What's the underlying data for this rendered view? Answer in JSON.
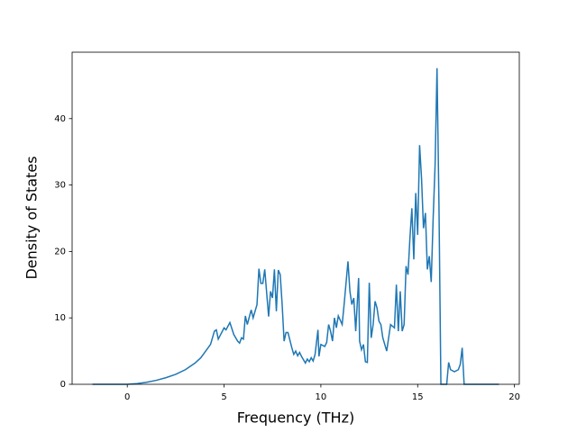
{
  "chart_data": {
    "type": "line",
    "xlabel": "Frequency (THz)",
    "ylabel": "Density of States",
    "xlim": [
      -2.85,
      20.25
    ],
    "ylim": [
      0,
      50
    ],
    "xticks": [
      0,
      5,
      10,
      15,
      20
    ],
    "yticks": [
      0,
      10,
      20,
      30,
      40
    ],
    "x": [
      -1.8,
      -1,
      0,
      0.5,
      1,
      1.5,
      2,
      2.5,
      3,
      3.5,
      3.8,
      4.0,
      4.3,
      4.5,
      4.6,
      4.7,
      5.0,
      5.1,
      5.3,
      5.5,
      5.7,
      5.8,
      5.9,
      6.0,
      6.1,
      6.2,
      6.4,
      6.5,
      6.7,
      6.8,
      6.9,
      7.0,
      7.1,
      7.3,
      7.4,
      7.5,
      7.6,
      7.7,
      7.8,
      7.9,
      8.0,
      8.1,
      8.2,
      8.3,
      8.5,
      8.6,
      8.7,
      8.8,
      8.9,
      9.0,
      9.2,
      9.3,
      9.4,
      9.5,
      9.6,
      9.7,
      9.85,
      9.9,
      10.0,
      10.2,
      10.3,
      10.4,
      10.5,
      10.6,
      10.7,
      10.8,
      10.9,
      11.1,
      11.2,
      11.4,
      11.5,
      11.6,
      11.7,
      11.8,
      11.95,
      12.0,
      12.1,
      12.2,
      12.3,
      12.4,
      12.5,
      12.6,
      12.7,
      12.8,
      12.9,
      13.0,
      13.1,
      13.2,
      13.4,
      13.6,
      13.8,
      13.9,
      14.0,
      14.1,
      14.2,
      14.3,
      14.4,
      14.5,
      14.6,
      14.7,
      14.8,
      14.9,
      15.0,
      15.1,
      15.2,
      15.3,
      15.4,
      15.5,
      15.6,
      15.7,
      15.8,
      15.9,
      16.0,
      16.1,
      16.2,
      16.5,
      16.6,
      16.7,
      16.9,
      17.1,
      17.2,
      17.3,
      17.4,
      19.2
    ],
    "series": [
      {
        "color": "#1f77b4",
        "values": [
          0,
          0,
          0,
          0.1,
          0.3,
          0.6,
          1.0,
          1.5,
          2.2,
          3.2,
          4.0,
          4.8,
          6.0,
          8.0,
          8.2,
          6.8,
          8.5,
          8.2,
          9.3,
          7.5,
          6.5,
          6.2,
          7.0,
          6.8,
          10.3,
          9.0,
          11.2,
          10.0,
          12.0,
          17.4,
          15.2,
          15.2,
          17.3,
          10.2,
          14.0,
          13.0,
          17.3,
          11.0,
          17.2,
          16.5,
          12.0,
          6.5,
          7.8,
          7.8,
          5.5,
          4.5,
          5.0,
          4.3,
          4.8,
          4.2,
          3.2,
          3.8,
          3.4,
          4.0,
          3.5,
          4.5,
          8.2,
          4.2,
          6.0,
          5.7,
          6.3,
          9.0,
          8.0,
          6.5,
          10.0,
          8.5,
          10.3,
          9.0,
          12.0,
          18.5,
          14.0,
          12.0,
          13.0,
          8.0,
          16.0,
          6.5,
          5.2,
          6.0,
          3.4,
          3.3,
          15.3,
          7.0,
          9.0,
          12.5,
          11.5,
          9.5,
          9.0,
          7.0,
          5.0,
          9.0,
          8.5,
          15.0,
          8.0,
          14.0,
          8.0,
          9.0,
          17.8,
          16.5,
          22.0,
          26.5,
          18.8,
          28.8,
          22.5,
          36.0,
          31.0,
          23.5,
          25.8,
          17.3,
          19.3,
          15.4,
          25.0,
          33.0,
          47.6,
          27.0,
          0,
          0,
          3.3,
          2.2,
          1.9,
          2.2,
          3.0,
          5.5,
          0,
          0
        ]
      }
    ]
  }
}
